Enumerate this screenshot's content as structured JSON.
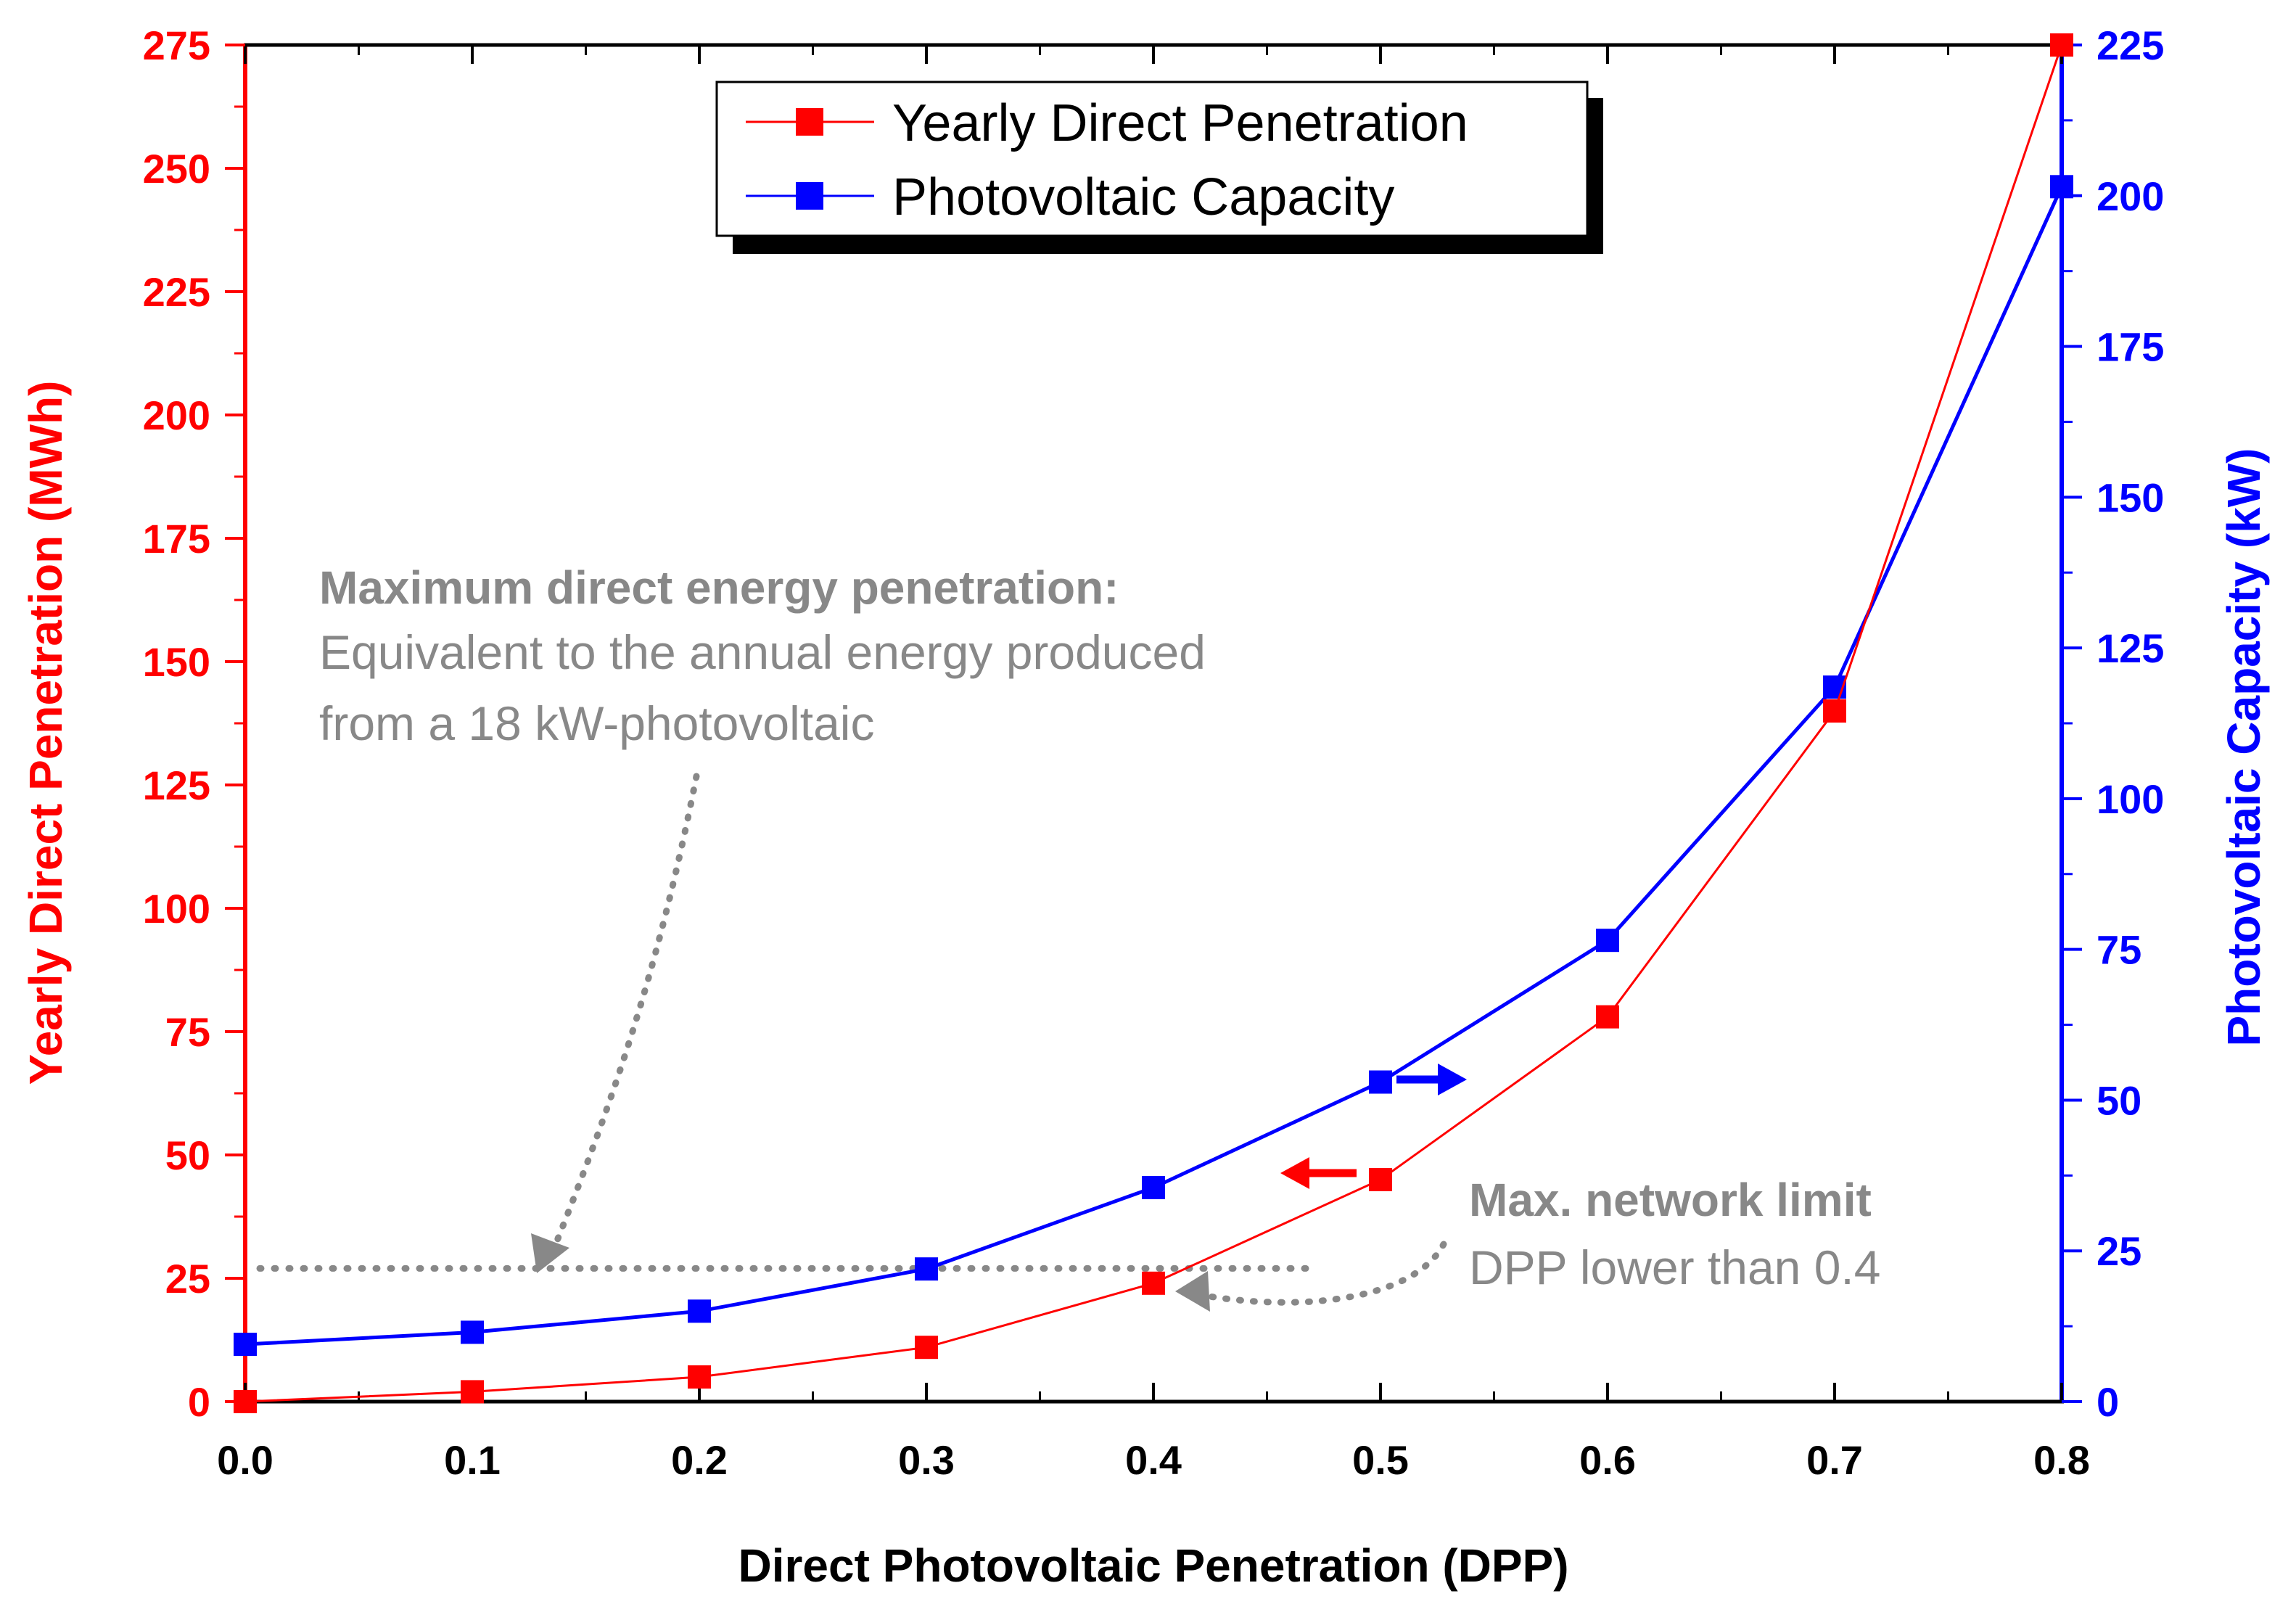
{
  "chart_data": {
    "type": "line",
    "xlabel": "Direct Photovoltaic Penetration (DPP)",
    "ylabel_left": "Yearly Direct Penetration (MWh)",
    "ylabel_right": "Photovoltaic Capacity (kW)",
    "x": [
      0.0,
      0.1,
      0.2,
      0.3,
      0.4,
      0.5,
      0.6,
      0.7,
      0.8
    ],
    "x_ticks": [
      "0.0",
      "0.1",
      "0.2",
      "0.3",
      "0.4",
      "0.5",
      "0.6",
      "0.7",
      "0.8"
    ],
    "xlim": [
      0.0,
      0.8
    ],
    "ylim_left": [
      0,
      275
    ],
    "ylim_right": [
      0,
      225
    ],
    "y_ticks_left": [
      "0",
      "25",
      "50",
      "75",
      "100",
      "125",
      "150",
      "175",
      "200",
      "225",
      "250",
      "275"
    ],
    "y_ticks_right": [
      "0",
      "25",
      "50",
      "75",
      "100",
      "125",
      "150",
      "175",
      "200",
      "225"
    ],
    "grid": false,
    "legend_position": "top-center",
    "series": [
      {
        "name": "Yearly Direct Penetration",
        "axis": "left",
        "color": "#ff0000",
        "marker": "square",
        "values": [
          0,
          2,
          5,
          11,
          24,
          45,
          78,
          140,
          275
        ]
      },
      {
        "name": "Photovoltaic Capacity",
        "axis": "right",
        "color": "#0000ff",
        "marker": "square",
        "values": [
          9.5,
          11.5,
          15,
          22,
          35.5,
          53,
          76.5,
          118.5,
          201.5
        ]
      }
    ],
    "reference_line": {
      "axis": "left",
      "value": 27,
      "x_range": [
        0.0,
        0.47
      ],
      "style": "dotted",
      "color": "#888888"
    },
    "annotations": {
      "max_energy": {
        "title": "Maximum direct energy penetration:",
        "line1": "Equivalent to the annual energy produced",
        "line2": "from a 18 kW-photovoltaic"
      },
      "network_limit": {
        "title": "Max. network limit",
        "line1": "DPP lower than 0.4"
      }
    }
  }
}
